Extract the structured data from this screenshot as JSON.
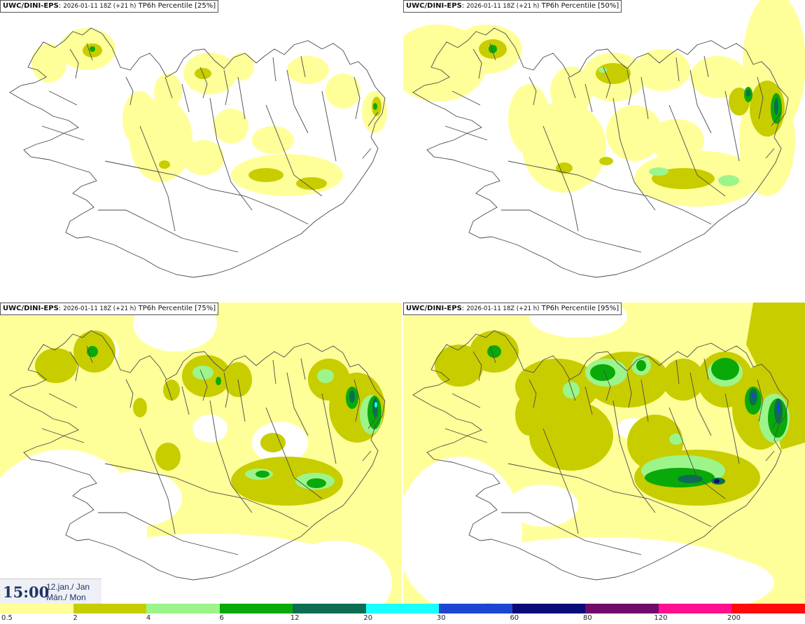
{
  "panels": [
    {
      "model": "UWC/DINI-EPS",
      "run": "2026-01-11 18Z (+21 h)",
      "product": "TP6h Percentile [25%]"
    },
    {
      "model": "UWC/DINI-EPS",
      "run": "2026-01-11 18Z (+21 h)",
      "product": "TP6h Percentile [50%]"
    },
    {
      "model": "UWC/DINI-EPS",
      "run": "2026-01-11 18Z (+21 h)",
      "product": "TP6h Percentile [75%]"
    },
    {
      "model": "UWC/DINI-EPS",
      "run": "2026-01-11 18Z (+21 h)",
      "product": "TP6h Percentile [95%]"
    }
  ],
  "valid_time": {
    "time": "15:00",
    "date": "12.jan./ Jan",
    "day": "Mán./ Mon"
  },
  "legend": {
    "colors": [
      "#ffff99",
      "#c8cd00",
      "#9cf58a",
      "#0aa90a",
      "#0b6e52",
      "#19ffff",
      "#1a46d2",
      "#0a0a78",
      "#700a6b",
      "#ff1090",
      "#ff0a0a"
    ],
    "labels": [
      "0.5",
      "2",
      "4",
      "6",
      "12",
      "20",
      "30",
      "60",
      "80",
      "120",
      "200"
    ]
  }
}
